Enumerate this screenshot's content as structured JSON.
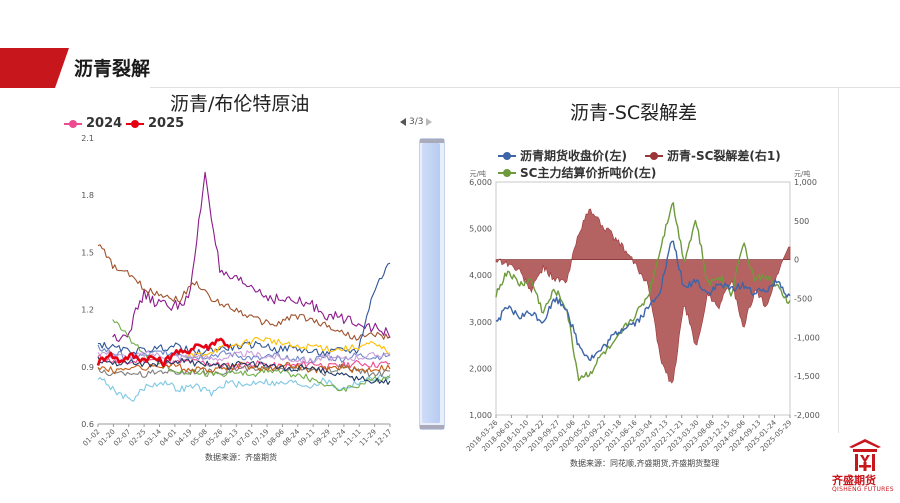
{
  "header": {
    "section_title": "沥青裂解"
  },
  "left_chart_title": "沥青/布伦特原油",
  "right_chart_title": "沥青-SC裂解差",
  "left_legend": [
    {
      "label": "2024",
      "color": "#ee4a8f"
    },
    {
      "label": "2025",
      "color": "#e60012"
    }
  ],
  "pager": {
    "text": "3/3"
  },
  "left_source": "数据来源：齐盛期货",
  "right_source": "数据来源：同花顺,齐盛期货,齐盛期货整理",
  "right_legend": [
    {
      "label": "沥青期货收盘价(左)",
      "color": "#3e65a8"
    },
    {
      "label": "沥青-SC裂解差(右1)",
      "color": "#9b3537"
    },
    {
      "label": "SC主力结算价折吨价(左)",
      "color": "#6e9a3b"
    }
  ],
  "right_units": {
    "left": "元/吨",
    "right": "元/吨"
  },
  "logo": {
    "name": "齐盛期货",
    "en": "QISHENG FUTURES"
  },
  "chart_data": [
    {
      "type": "line",
      "title": "沥青/布伦特原油",
      "xlabel": "",
      "ylabel": "",
      "ylim": [
        0.6,
        2.1
      ],
      "y_ticks": [
        "2.1",
        "1.8",
        "1.5",
        "1.2",
        "0.9",
        "0.6"
      ],
      "x_ticks": [
        "01-02",
        "01-20",
        "02-07",
        "02-25",
        "03-14",
        "04-01",
        "04-19",
        "05-08",
        "05-26",
        "06-13",
        "07-01",
        "07-19",
        "08-06",
        "08-24",
        "09-11",
        "09-29",
        "10-24",
        "11-11",
        "11-29",
        "12-17"
      ],
      "series": [
        {
          "name": "2024",
          "color": "#ee4a8f",
          "x_range": [
            0,
            1
          ],
          "anchors": [
            0.95,
            0.93,
            0.92,
            0.94,
            0.93,
            0.92,
            0.93,
            0.92,
            0.91,
            0.9,
            0.92,
            0.91,
            0.9,
            0.91,
            0.92,
            0.9,
            0.91,
            0.92,
            0.91,
            0.92
          ]
        },
        {
          "name": "2025",
          "color": "#e60012",
          "x_range": [
            0,
            0.45
          ],
          "anchors": [
            0.92,
            0.97,
            0.93,
            0.96,
            0.94,
            0.95,
            0.92,
            0.98,
            0.97,
            1.02,
            1.0,
            1.05,
            1.01
          ]
        },
        {
          "color": "#8b1a8b",
          "x_range": [
            0.05,
            1
          ],
          "anchors": [
            1.05,
            1.08,
            1.28,
            1.23,
            1.22,
            1.26,
            1.92,
            1.38,
            1.35,
            1.32,
            1.27,
            1.25,
            1.24,
            1.22,
            1.17,
            1.15,
            1.14,
            1.1,
            1.07
          ]
        },
        {
          "color": "#a0522d",
          "x_range": [
            0,
            1
          ],
          "anchors": [
            1.55,
            1.42,
            1.38,
            1.3,
            1.28,
            1.25,
            1.35,
            1.25,
            1.22,
            1.18,
            1.14,
            1.12,
            1.17,
            1.15,
            1.12,
            1.08,
            1.05,
            1.07,
            1.05
          ]
        },
        {
          "color": "#2f5597",
          "x_range": [
            0,
            1
          ],
          "anchors": [
            1.02,
            1.0,
            0.98,
            0.99,
            1.0,
            1.01,
            0.97,
            0.99,
            1.0,
            1.01,
            1.02,
            0.99,
            1.0,
            0.98,
            0.97,
            0.99,
            0.98,
            1.3,
            1.45
          ]
        },
        {
          "color": "#7ec8e3",
          "x_range": [
            0,
            1
          ],
          "anchors": [
            0.85,
            0.78,
            0.72,
            0.8,
            0.82,
            0.78,
            0.8,
            0.76,
            0.82,
            0.8,
            0.83,
            0.81,
            0.82,
            0.8,
            0.83,
            0.78,
            0.82,
            0.84,
            0.85
          ]
        },
        {
          "color": "#ffc000",
          "x_range": [
            0.3,
            1
          ],
          "anchors": [
            0.95,
            0.97,
            1.0,
            1.02,
            1.05,
            1.03,
            1.0,
            1.01,
            0.99,
            1.0,
            1.02,
            0.98
          ]
        },
        {
          "color": "#7f7f7f",
          "x_range": [
            0,
            1
          ],
          "anchors": [
            0.88,
            0.86,
            0.87,
            0.86,
            0.88,
            0.87,
            0.88,
            0.87,
            0.88,
            0.89,
            0.88,
            0.9,
            0.89,
            0.88,
            0.87,
            0.9,
            0.88,
            0.86,
            0.87
          ]
        },
        {
          "color": "#70ad47",
          "x_range": [
            0.05,
            1
          ],
          "anchors": [
            1.15,
            1.05,
            0.95,
            0.9,
            0.88,
            0.87,
            0.86,
            0.87,
            0.86,
            0.88,
            0.87,
            0.85,
            0.82,
            0.78,
            0.8,
            0.83,
            0.85
          ]
        },
        {
          "color": "#6d87c8",
          "x_range": [
            0,
            1
          ],
          "anchors": [
            1.0,
            0.97,
            0.95,
            0.96,
            0.98,
            0.97,
            0.95,
            0.96,
            0.97,
            0.95,
            0.94,
            0.96,
            0.95,
            0.93,
            0.95,
            0.94,
            0.96,
            0.95,
            0.96
          ]
        },
        {
          "color": "#c55a11",
          "x_range": [
            0,
            1
          ],
          "anchors": [
            0.9,
            0.88,
            0.9,
            0.89,
            0.91,
            0.9,
            0.88,
            0.89,
            0.9,
            0.91,
            0.89,
            0.9,
            0.91,
            0.88,
            0.89,
            0.9,
            0.88,
            0.89,
            0.9
          ]
        },
        {
          "color": "#1f3864",
          "x_range": [
            0,
            1
          ],
          "anchors": [
            0.94,
            0.92,
            0.93,
            0.91,
            0.92,
            0.93,
            0.92,
            0.91,
            0.9,
            0.92,
            0.91,
            0.9,
            0.89,
            0.9,
            0.88,
            0.86,
            0.84,
            0.83,
            0.82
          ]
        },
        {
          "color": "#c9a0dc",
          "x_range": [
            0,
            1
          ],
          "anchors": [
            0.98,
            0.96,
            0.95,
            0.97,
            0.96,
            0.95,
            0.96,
            0.94,
            0.95,
            0.97,
            0.96,
            0.95,
            0.94,
            0.93,
            0.95,
            0.94,
            0.95,
            0.96,
            0.97
          ]
        }
      ]
    },
    {
      "type": "line",
      "title": "沥青-SC裂解差",
      "ylim_left": [
        1000,
        6000
      ],
      "ylim_right": [
        -2000,
        1000
      ],
      "y_ticks_left": [
        "6,000",
        "5,000",
        "4,000",
        "3,000",
        "2,000",
        "1,000"
      ],
      "y_ticks_right": [
        "1,000",
        "500",
        "0",
        "-500",
        "-1,000",
        "-1,500",
        "-2,000"
      ],
      "x_ticks": [
        "2018-03-26",
        "2018-06-01",
        "2018-10-10",
        "2019-04-22",
        "2019-09-27",
        "2020-01-06",
        "2020-05-20",
        "2020-09-22",
        "2021-01-18",
        "2021-06-16",
        "2022-03-04",
        "2022-07-13",
        "2022-11-21",
        "2023-03-30",
        "2023-08-08",
        "2023-12-15",
        "2024-05-06",
        "2024-09-13",
        "2025-01-24",
        "2025-05-29"
      ],
      "series": [
        {
          "name": "沥青期货收盘价(左)",
          "axis": "left",
          "color": "#3e65a8",
          "anchors": [
            3000,
            3300,
            3100,
            3200,
            3000,
            3500,
            3300,
            2500,
            2200,
            2400,
            2700,
            2900,
            3000,
            3300,
            3700,
            4800,
            3700,
            3900,
            3600,
            3800,
            3700,
            3800,
            3600,
            3700,
            3900,
            3500
          ]
        },
        {
          "name": "SC主力结算价折吨价(左)",
          "axis": "left",
          "color": "#6e9a3b",
          "anchors": [
            3600,
            4100,
            3800,
            3900,
            3200,
            3700,
            3300,
            1800,
            1900,
            2300,
            2500,
            2900,
            3200,
            3600,
            4600,
            5600,
            4300,
            5200,
            3800,
            4000,
            3600,
            4700,
            3900,
            4000,
            3700,
            3400
          ]
        },
        {
          "name": "沥青-SC裂解差(右1)",
          "axis": "right",
          "color": "#9b3537",
          "anchors": [
            0,
            -50,
            -150,
            -400,
            -100,
            -250,
            -300,
            350,
            650,
            450,
            300,
            120,
            -100,
            -350,
            -1300,
            -1650,
            -550,
            -1150,
            -450,
            -600,
            -250,
            -900,
            -400,
            -600,
            -150,
            200
          ]
        }
      ]
    }
  ]
}
